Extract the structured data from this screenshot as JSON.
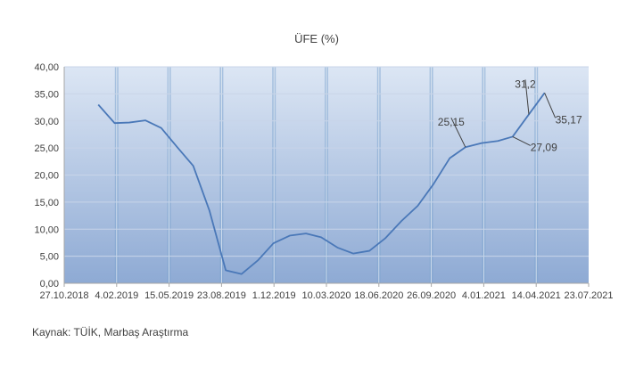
{
  "chart_data": {
    "type": "line",
    "title": "ÜFE (%)",
    "xlabel": "",
    "ylabel": "",
    "ylim": [
      0,
      40
    ],
    "yticks": [
      "0,00",
      "5,00",
      "10,00",
      "15,00",
      "20,00",
      "25,00",
      "30,00",
      "35,00",
      "40,00"
    ],
    "xlim": [
      "2018-10-27",
      "2021-07-23"
    ],
    "xticks": [
      "27.10.2018",
      "4.02.2019",
      "15.05.2019",
      "23.08.2019",
      "1.12.2019",
      "10.03.2020",
      "18.06.2020",
      "26.09.2020",
      "4.01.2021",
      "14.04.2021",
      "23.07.2021"
    ],
    "series": [
      {
        "name": "",
        "color": "#4a78b8",
        "points": [
          {
            "x": "2018-12-31",
            "y": 33.0
          },
          {
            "x": "2019-01-31",
            "y": 29.6
          },
          {
            "x": "2019-02-28",
            "y": 29.7
          },
          {
            "x": "2019-03-31",
            "y": 30.1
          },
          {
            "x": "2019-04-30",
            "y": 28.7
          },
          {
            "x": "2019-05-31",
            "y": 25.1
          },
          {
            "x": "2019-06-30",
            "y": 21.7
          },
          {
            "x": "2019-07-31",
            "y": 13.4
          },
          {
            "x": "2019-08-31",
            "y": 2.4
          },
          {
            "x": "2019-09-30",
            "y": 1.7
          },
          {
            "x": "2019-10-31",
            "y": 4.2
          },
          {
            "x": "2019-11-30",
            "y": 7.4
          },
          {
            "x": "2019-12-31",
            "y": 8.8
          },
          {
            "x": "2020-01-31",
            "y": 9.2
          },
          {
            "x": "2020-02-29",
            "y": 8.5
          },
          {
            "x": "2020-03-31",
            "y": 6.6
          },
          {
            "x": "2020-04-30",
            "y": 5.5
          },
          {
            "x": "2020-05-31",
            "y": 6.0
          },
          {
            "x": "2020-06-30",
            "y": 8.3
          },
          {
            "x": "2020-07-31",
            "y": 11.5
          },
          {
            "x": "2020-08-31",
            "y": 14.3
          },
          {
            "x": "2020-09-30",
            "y": 18.3
          },
          {
            "x": "2020-10-31",
            "y": 23.1
          },
          {
            "x": "2020-11-30",
            "y": 25.15
          },
          {
            "x": "2020-12-31",
            "y": 25.9
          },
          {
            "x": "2021-01-31",
            "y": 26.3
          },
          {
            "x": "2021-02-28",
            "y": 27.09
          },
          {
            "x": "2021-03-31",
            "y": 31.2
          },
          {
            "x": "2021-04-30",
            "y": 35.17
          }
        ]
      }
    ],
    "annotations": [
      {
        "label": "25,15",
        "x": "2020-11-30",
        "y": 25.15
      },
      {
        "label": "31,2",
        "x": "2021-03-31",
        "y": 31.2
      },
      {
        "label": "27,09",
        "x": "2021-02-28",
        "y": 27.09
      },
      {
        "label": "35,17",
        "x": "2021-04-30",
        "y": 35.17
      }
    ],
    "colors": {
      "background_top": "#dce6f4",
      "background_bottom": "#8eaad4",
      "line": "#4a78b8",
      "axis": "#a6a6a6"
    }
  },
  "source": "Kaynak: TÜİK, Marbaş Araştırma"
}
